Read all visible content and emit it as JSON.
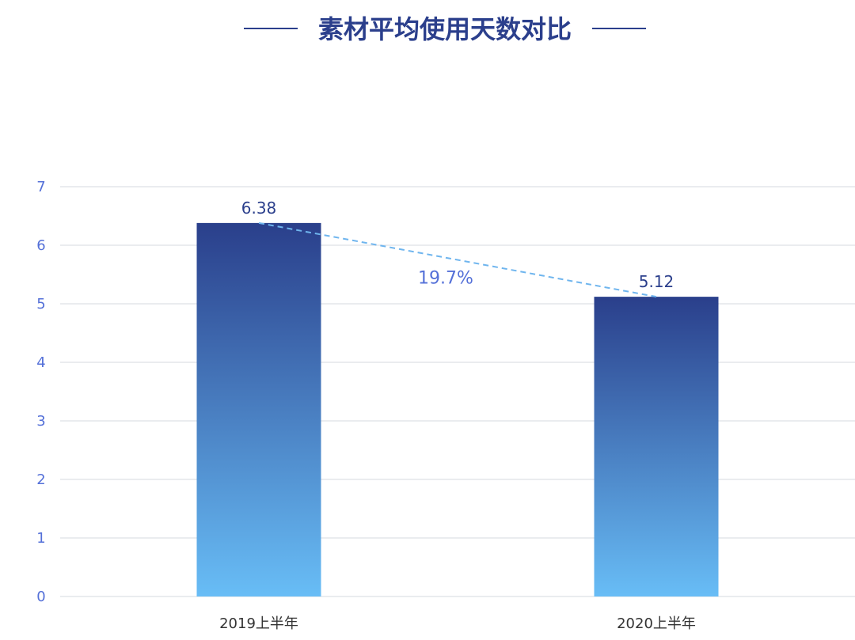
{
  "chart_data": {
    "type": "bar",
    "title": "素材平均使用天数对比",
    "categories": [
      "2019上半年",
      "2020上半年"
    ],
    "values": [
      6.38,
      5.12
    ],
    "value_labels": [
      "6.38",
      "5.12"
    ],
    "y_ticks": [
      "0",
      "1",
      "2",
      "3",
      "4",
      "5",
      "6",
      "7"
    ],
    "ylim": [
      0,
      7
    ],
    "grid": true,
    "annotation": {
      "text": "19.7%",
      "style": "dashed connector between bar tops"
    },
    "colors": {
      "title": "#2b3f8c",
      "title_rule": "#2b3f8c",
      "bar_top": "#2a3f8b",
      "bar_bottom": "#68bdf6",
      "tick": "#5470d8",
      "value_label": "#2b3f8c",
      "annotation": "#5470d8",
      "connector": "#6fb5ee",
      "gridline": "#e3e5ea",
      "category": "#333333"
    }
  }
}
